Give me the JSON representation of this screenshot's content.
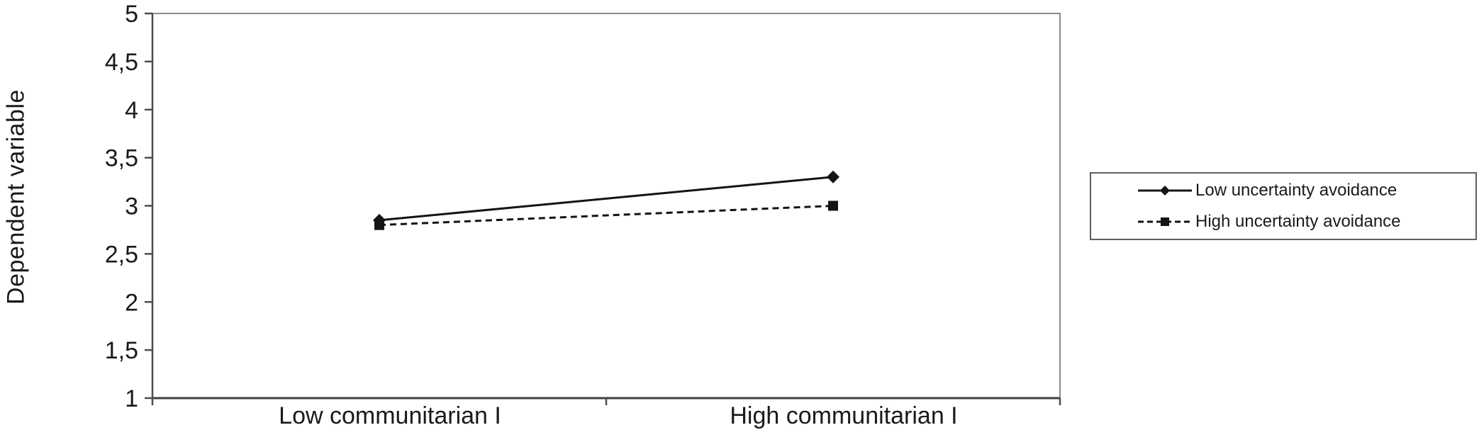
{
  "colors": {
    "series_line": "#141414",
    "marker_fill": "#141414",
    "plot_border": "#8a8a8a",
    "axis_line": "#4d4d4d",
    "tick_mark": "#4d4d4d",
    "text": "#1a1a1a",
    "legend_border": "#5f5f5f",
    "background": "#ffffff"
  },
  "chart_data": {
    "type": "line",
    "title": "",
    "xlabel": "",
    "ylabel": "Dependent variable",
    "categories": [
      "Low communitarian I",
      "High communitarian I"
    ],
    "series": [
      {
        "name": "Low uncertainty avoidance",
        "values": [
          2.85,
          3.3
        ],
        "line_style": "solid",
        "marker": "diamond"
      },
      {
        "name": "High uncertainty avoidance",
        "values": [
          2.8,
          3.0
        ],
        "line_style": "dashed",
        "marker": "square"
      }
    ],
    "ylim": [
      1,
      5
    ],
    "ytick_step": 0.5,
    "ytick_labels": [
      "5",
      "4,5",
      "4",
      "3,5",
      "3",
      "2,5",
      "2",
      "1,5",
      "1"
    ],
    "grid": false,
    "legend_position": "right"
  }
}
